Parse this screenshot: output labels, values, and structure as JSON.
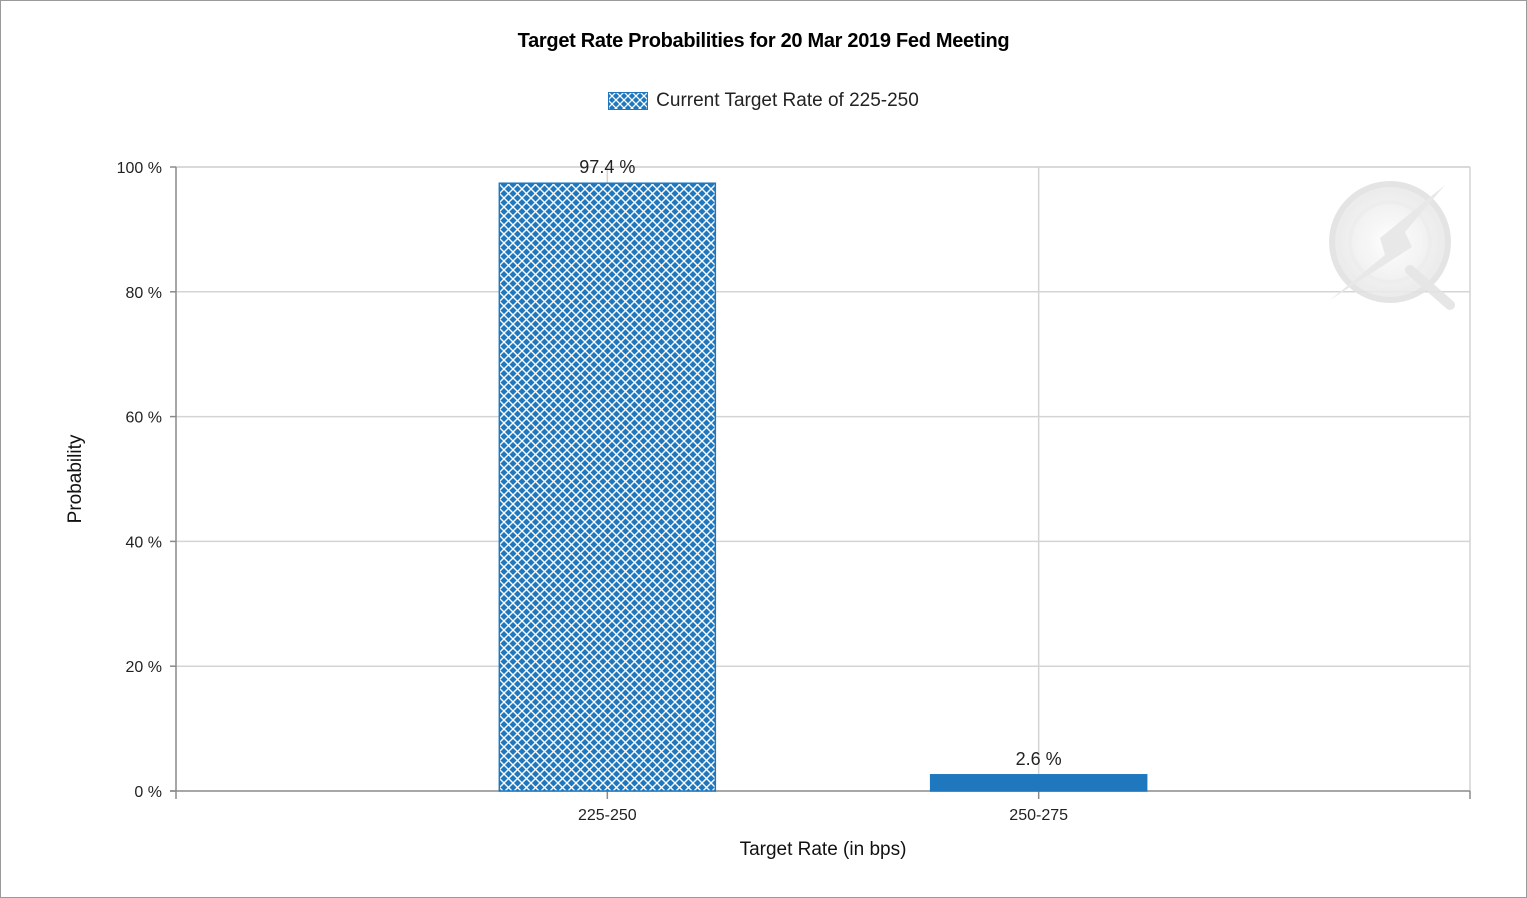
{
  "chart_data": {
    "type": "bar",
    "title": "Target Rate Probabilities for 20 Mar 2019 Fed Meeting",
    "legend": {
      "position": "top-center",
      "entries": [
        "Current Target Rate of 225-250"
      ]
    },
    "xlabel": "Target Rate (in bps)",
    "ylabel": "Probability",
    "categories": [
      "225-250",
      "250-275"
    ],
    "values": [
      97.4,
      2.6
    ],
    "data_labels": [
      "97.4 %",
      "2.6 %"
    ],
    "ylim": [
      0,
      100
    ],
    "yticks": [
      0,
      20,
      40,
      60,
      80,
      100
    ],
    "ytick_labels": [
      "0 %",
      "20 %",
      "40 %",
      "60 %",
      "80 %",
      "100 %"
    ],
    "grid": true,
    "bar_styles": [
      "crosshatch",
      "solid"
    ],
    "colors": {
      "bar": "#1f78be",
      "hatch": "#ffffff",
      "grid": "#d4d4d4",
      "axis": "#8a8a8a"
    }
  }
}
